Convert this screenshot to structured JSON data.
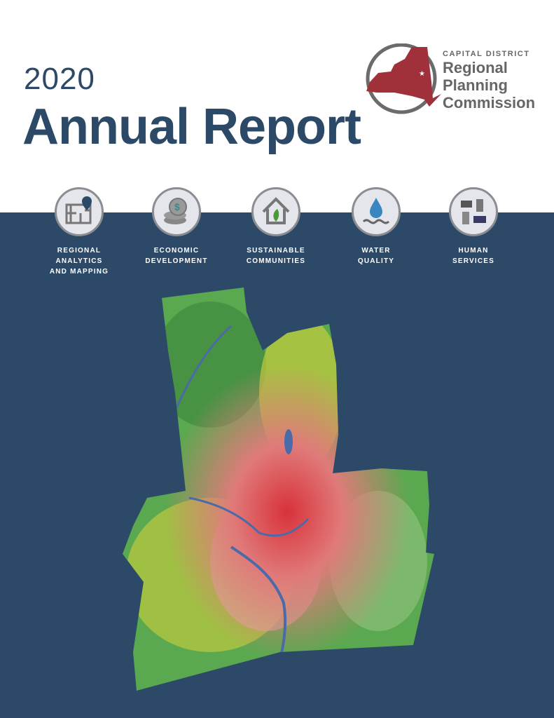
{
  "header": {
    "year": "2020",
    "title": "Annual Report"
  },
  "logo": {
    "line1": "CAPITAL DISTRICT",
    "line2": "Regional",
    "line3": "Planning",
    "line4": "Commission",
    "color": "#a0313a"
  },
  "categories": [
    {
      "icon": "map-pin-icon",
      "line1": "REGIONAL",
      "line2": "ANALYTICS",
      "line3": "AND MAPPING"
    },
    {
      "icon": "coins-dollar-icon",
      "line1": "ECONOMIC",
      "line2": "DEVELOPMENT",
      "line3": ""
    },
    {
      "icon": "house-leaf-icon",
      "line1": "SUSTAINABLE",
      "line2": "COMMUNITIES",
      "line3": ""
    },
    {
      "icon": "water-drop-icon",
      "line1": "WATER",
      "line2": "QUALITY",
      "line3": ""
    },
    {
      "icon": "hands-icon",
      "line1": "HUMAN",
      "line2": "SERVICES",
      "line3": ""
    }
  ],
  "colors": {
    "navy": "#2c4a68",
    "map_green": "#5aa84f",
    "map_yellow": "#d8d43a",
    "map_red": "#d8323a"
  }
}
